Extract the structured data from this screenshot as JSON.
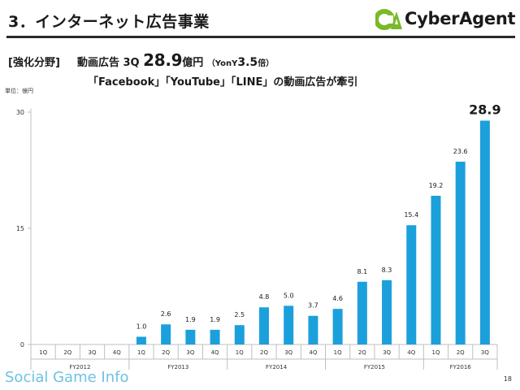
{
  "slide": {
    "title": "3．インターネット広告事業",
    "brand_logo_text": "CyberAgent",
    "segment_label": "[強化分野]",
    "headline_prefix": "動画広告 3Q",
    "headline_value": "28.9",
    "headline_unit": "億円",
    "yoy_prefix": "（YonY",
    "yoy_value": "3.5",
    "yoy_suffix": "倍）",
    "subheadline": "「Facebook」「YouTube」「LINE」の動画広告が牽引",
    "unit_label": "単位：億円",
    "watermark_text": "Social Game Info",
    "page_number": "18"
  },
  "colors": {
    "bar": "#1ca0dc",
    "axis": "#bfbfbf",
    "logo_green": "#7ab929"
  },
  "chart_data": {
    "type": "bar",
    "title": "",
    "xlabel": "",
    "ylabel": "単位：億円",
    "ylim": [
      0,
      30
    ],
    "yticks": [
      0,
      15,
      30
    ],
    "grid": false,
    "categories": [
      "1Q",
      "2Q",
      "3Q",
      "4Q",
      "1Q",
      "2Q",
      "3Q",
      "4Q",
      "1Q",
      "2Q",
      "3Q",
      "4Q",
      "1Q",
      "2Q",
      "3Q",
      "4Q",
      "1Q",
      "2Q",
      "3Q"
    ],
    "groups": [
      {
        "label": "FY2012",
        "count": 4
      },
      {
        "label": "FY2013",
        "count": 4
      },
      {
        "label": "FY2014",
        "count": 4
      },
      {
        "label": "FY2015",
        "count": 4
      },
      {
        "label": "FY2016",
        "count": 3
      }
    ],
    "values": [
      null,
      null,
      null,
      null,
      1.0,
      2.6,
      1.9,
      1.9,
      2.5,
      4.8,
      5.0,
      3.7,
      4.6,
      8.1,
      8.3,
      15.4,
      19.2,
      23.6,
      28.9
    ],
    "value_labels": [
      "",
      "",
      "",
      "",
      "1.0",
      "2.6",
      "1.9",
      "1.9",
      "2.5",
      "4.8",
      "5.0",
      "3.7",
      "4.6",
      "8.1",
      "8.3",
      "15.4",
      "19.2",
      "23.6",
      "28.9"
    ]
  }
}
